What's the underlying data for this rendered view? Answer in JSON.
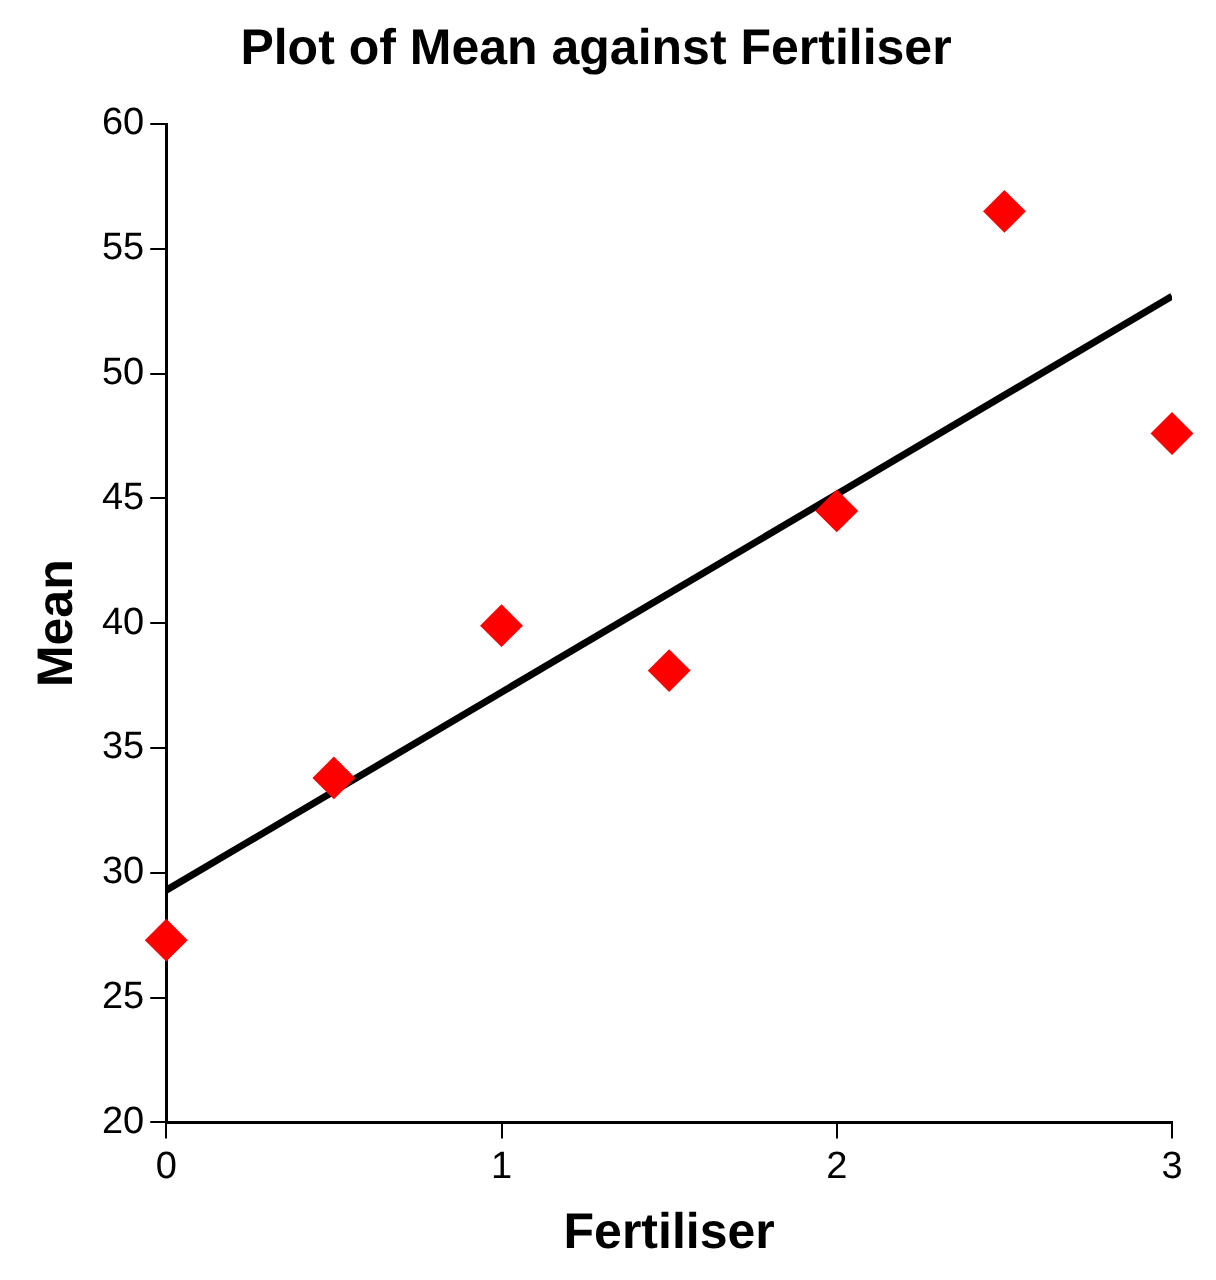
{
  "chart_data": {
    "type": "scatter",
    "title": "Plot of Mean against Fertiliser",
    "xlabel": "Fertiliser",
    "ylabel": "Mean",
    "x": [
      0,
      0.5,
      1,
      1.5,
      2,
      2.5,
      3
    ],
    "series": [
      {
        "color": "#ff0000",
        "values": [
          27.3,
          33.8,
          39.9,
          38.1,
          44.5,
          56.5,
          47.6
        ],
        "marker": "diamond"
      },
      {
        "type": "line",
        "color": "#000000",
        "x": [
          0,
          3
        ],
        "values": [
          29.3,
          53.1
        ],
        "marker": "none",
        "line_style": "solid"
      }
    ],
    "xlim": [
      0,
      3
    ],
    "xticks": [
      0,
      1,
      2,
      3
    ],
    "ylim": [
      20,
      60
    ],
    "yticks": [
      20,
      25,
      30,
      35,
      40,
      45,
      50,
      55,
      60
    ],
    "grid": false,
    "legend": false
  }
}
